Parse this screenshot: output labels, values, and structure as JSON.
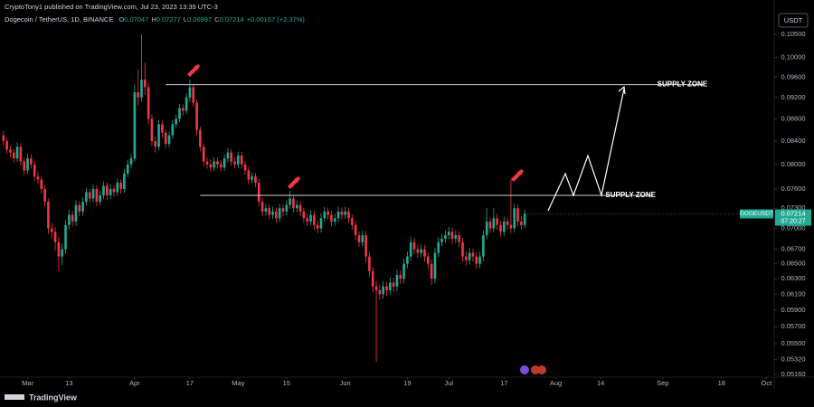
{
  "header": {
    "published": "CryptoTony1 published on TradingView.com, Jul 23, 2023 13:39 UTC-3",
    "symbol": "Dogecoin / TetherUS, 1D, BINANCE",
    "o_label": "O",
    "o": "0.07047",
    "h_label": "H",
    "h": "0.07277",
    "l_label": "L",
    "l": "0.06997",
    "c_label": "C",
    "c": "0.07214",
    "change": "+0.00167 (+2.37%)"
  },
  "currency": "USDT",
  "footer": "TradingView",
  "price_tag": {
    "symbol": "DOGEUSDT",
    "price": "0.07214",
    "countdown": "07:20:27"
  },
  "chart_data": {
    "type": "candlestick",
    "log_scale": true,
    "grid": false,
    "up_color": "#22ab94",
    "down_color": "#f23645",
    "ylim": [
      0.0512,
      0.1086
    ],
    "yticks": [
      {
        "value": 0.105,
        "label": "0.10500"
      },
      {
        "value": 0.1,
        "label": "0.10000"
      },
      {
        "value": 0.096,
        "label": "0.09600"
      },
      {
        "value": 0.092,
        "label": "0.09200"
      },
      {
        "value": 0.088,
        "label": "0.08800"
      },
      {
        "value": 0.084,
        "label": "0.08400"
      },
      {
        "value": 0.08,
        "label": "0.08000"
      },
      {
        "value": 0.076,
        "label": "0.07600"
      },
      {
        "value": 0.073,
        "label": "0.07300"
      },
      {
        "value": 0.07,
        "label": "0.07000"
      },
      {
        "value": 0.067,
        "label": "0.06700"
      },
      {
        "value": 0.065,
        "label": "0.06500"
      },
      {
        "value": 0.063,
        "label": "0.06300"
      },
      {
        "value": 0.061,
        "label": "0.06100"
      },
      {
        "value": 0.059,
        "label": "0.05900"
      },
      {
        "value": 0.057,
        "label": "0.05700"
      },
      {
        "value": 0.055,
        "label": "0.05500"
      },
      {
        "value": 0.0532,
        "label": "0.05320"
      },
      {
        "value": 0.0516,
        "label": "0.05160"
      }
    ],
    "xlim": [
      -8,
      216
    ],
    "xticks": [
      {
        "value": 0,
        "label": "Mar"
      },
      {
        "value": 12,
        "label": "13"
      },
      {
        "value": 31,
        "label": "Apr"
      },
      {
        "value": 47,
        "label": "17"
      },
      {
        "value": 61,
        "label": "May"
      },
      {
        "value": 75,
        "label": "15"
      },
      {
        "value": 92,
        "label": "Jun"
      },
      {
        "value": 110,
        "label": "19"
      },
      {
        "value": 122,
        "label": "Jul"
      },
      {
        "value": 138,
        "label": "17"
      },
      {
        "value": 153,
        "label": "Aug"
      },
      {
        "value": 166,
        "label": "14"
      },
      {
        "value": 184,
        "label": "Sep"
      },
      {
        "value": 201,
        "label": "18"
      },
      {
        "value": 214,
        "label": "Oct"
      }
    ],
    "zones": [
      {
        "label": "SUPPLY ZONE",
        "price": 0.0945,
        "from": 40,
        "to": 196
      },
      {
        "label": "SUPPLY ZONE",
        "price": 0.075,
        "from": 50,
        "to": 181
      }
    ],
    "candles": [
      [
        -7,
        0.085,
        0.0858,
        0.0832,
        0.084
      ],
      [
        -6,
        0.084,
        0.0846,
        0.0818,
        0.0825
      ],
      [
        -5,
        0.0825,
        0.0832,
        0.0812,
        0.082
      ],
      [
        -4,
        0.082,
        0.0826,
        0.0803,
        0.081
      ],
      [
        -3,
        0.081,
        0.0838,
        0.0804,
        0.083
      ],
      [
        -2,
        0.083,
        0.0836,
        0.0798,
        0.0805
      ],
      [
        -1,
        0.0805,
        0.0812,
        0.0782,
        0.079
      ],
      [
        0,
        0.079,
        0.0818,
        0.0784,
        0.081
      ],
      [
        1,
        0.081,
        0.0817,
        0.0793,
        0.08
      ],
      [
        2,
        0.08,
        0.0806,
        0.0772,
        0.078
      ],
      [
        3,
        0.078,
        0.0788,
        0.0768,
        0.0775
      ],
      [
        4,
        0.0775,
        0.0781,
        0.0752,
        0.076
      ],
      [
        5,
        0.076,
        0.0766,
        0.0733,
        0.074
      ],
      [
        6,
        0.074,
        0.0745,
        0.0692,
        0.07
      ],
      [
        7,
        0.07,
        0.0708,
        0.0686,
        0.0695
      ],
      [
        8,
        0.0695,
        0.0702,
        0.0668,
        0.068
      ],
      [
        9,
        0.068,
        0.0688,
        0.064,
        0.066
      ],
      [
        10,
        0.066,
        0.0678,
        0.0648,
        0.067
      ],
      [
        11,
        0.067,
        0.0712,
        0.0664,
        0.0705
      ],
      [
        12,
        0.0705,
        0.0728,
        0.0698,
        0.072
      ],
      [
        13,
        0.072,
        0.0726,
        0.0703,
        0.071
      ],
      [
        14,
        0.071,
        0.0742,
        0.0704,
        0.0735
      ],
      [
        15,
        0.0735,
        0.0741,
        0.0718,
        0.0725
      ],
      [
        16,
        0.0725,
        0.0747,
        0.0719,
        0.074
      ],
      [
        17,
        0.074,
        0.0762,
        0.0734,
        0.0755
      ],
      [
        18,
        0.0755,
        0.076,
        0.0738,
        0.0745
      ],
      [
        19,
        0.0745,
        0.0767,
        0.0739,
        0.076
      ],
      [
        20,
        0.076,
        0.0765,
        0.0733,
        0.074
      ],
      [
        21,
        0.074,
        0.0757,
        0.0734,
        0.075
      ],
      [
        22,
        0.075,
        0.0772,
        0.0744,
        0.0765
      ],
      [
        23,
        0.0765,
        0.077,
        0.0743,
        0.075
      ],
      [
        24,
        0.075,
        0.0767,
        0.0744,
        0.076
      ],
      [
        25,
        0.076,
        0.0766,
        0.0748,
        0.0755
      ],
      [
        26,
        0.0755,
        0.0777,
        0.0749,
        0.077
      ],
      [
        27,
        0.077,
        0.0775,
        0.0753,
        0.076
      ],
      [
        28,
        0.076,
        0.0792,
        0.0754,
        0.0785
      ],
      [
        29,
        0.0785,
        0.0808,
        0.0779,
        0.08
      ],
      [
        30,
        0.08,
        0.0818,
        0.0794,
        0.081
      ],
      [
        31,
        0.081,
        0.0945,
        0.0805,
        0.093
      ],
      [
        32,
        0.093,
        0.0975,
        0.0905,
        0.092
      ],
      [
        33,
        0.092,
        0.105,
        0.0912,
        0.0955
      ],
      [
        34,
        0.0955,
        0.099,
        0.0925,
        0.094
      ],
      [
        35,
        0.094,
        0.0948,
        0.087,
        0.088
      ],
      [
        36,
        0.088,
        0.0888,
        0.0832,
        0.084
      ],
      [
        37,
        0.084,
        0.0848,
        0.082,
        0.083
      ],
      [
        38,
        0.083,
        0.0878,
        0.0824,
        0.087
      ],
      [
        39,
        0.087,
        0.0876,
        0.0846,
        0.0855
      ],
      [
        40,
        0.0855,
        0.0861,
        0.0828,
        0.0835
      ],
      [
        41,
        0.0835,
        0.0857,
        0.0829,
        0.085
      ],
      [
        42,
        0.085,
        0.0877,
        0.0844,
        0.087
      ],
      [
        43,
        0.087,
        0.0888,
        0.0864,
        0.088
      ],
      [
        44,
        0.088,
        0.0908,
        0.0874,
        0.09
      ],
      [
        45,
        0.09,
        0.0907,
        0.0886,
        0.0895
      ],
      [
        46,
        0.0895,
        0.0928,
        0.0889,
        0.092
      ],
      [
        47,
        0.092,
        0.0955,
        0.0912,
        0.094
      ],
      [
        48,
        0.094,
        0.0946,
        0.0902,
        0.091
      ],
      [
        49,
        0.091,
        0.0916,
        0.085,
        0.086
      ],
      [
        50,
        0.086,
        0.0866,
        0.0822,
        0.083
      ],
      [
        51,
        0.083,
        0.0836,
        0.0797,
        0.0805
      ],
      [
        52,
        0.0805,
        0.0812,
        0.0793,
        0.08
      ],
      [
        53,
        0.08,
        0.0808,
        0.0788,
        0.0795
      ],
      [
        54,
        0.0795,
        0.0812,
        0.0789,
        0.0805
      ],
      [
        55,
        0.0805,
        0.0811,
        0.0793,
        0.08
      ],
      [
        56,
        0.08,
        0.0807,
        0.0788,
        0.0795
      ],
      [
        57,
        0.0795,
        0.0817,
        0.0789,
        0.081
      ],
      [
        58,
        0.081,
        0.0828,
        0.0804,
        0.082
      ],
      [
        59,
        0.082,
        0.0826,
        0.0798,
        0.0805
      ],
      [
        60,
        0.0805,
        0.0812,
        0.0793,
        0.08
      ],
      [
        61,
        0.08,
        0.0822,
        0.0794,
        0.0815
      ],
      [
        62,
        0.0815,
        0.0821,
        0.0793,
        0.08
      ],
      [
        63,
        0.08,
        0.0806,
        0.0783,
        0.079
      ],
      [
        64,
        0.079,
        0.0796,
        0.0768,
        0.0775
      ],
      [
        65,
        0.0775,
        0.0787,
        0.0769,
        0.078
      ],
      [
        66,
        0.078,
        0.0786,
        0.0763,
        0.077
      ],
      [
        67,
        0.077,
        0.0776,
        0.0733,
        0.074
      ],
      [
        68,
        0.074,
        0.0746,
        0.0718,
        0.0725
      ],
      [
        69,
        0.0725,
        0.0737,
        0.0719,
        0.073
      ],
      [
        70,
        0.073,
        0.0736,
        0.0713,
        0.072
      ],
      [
        71,
        0.072,
        0.0732,
        0.0714,
        0.0725
      ],
      [
        72,
        0.0725,
        0.0731,
        0.0708,
        0.0715
      ],
      [
        73,
        0.0715,
        0.0737,
        0.0709,
        0.073
      ],
      [
        74,
        0.073,
        0.0736,
        0.0718,
        0.0725
      ],
      [
        75,
        0.0725,
        0.0742,
        0.0719,
        0.0735
      ],
      [
        76,
        0.0735,
        0.0757,
        0.0729,
        0.0745
      ],
      [
        77,
        0.0745,
        0.075,
        0.0723,
        0.073
      ],
      [
        78,
        0.073,
        0.0742,
        0.0724,
        0.0735
      ],
      [
        79,
        0.0735,
        0.0741,
        0.0718,
        0.0725
      ],
      [
        80,
        0.0725,
        0.0731,
        0.0708,
        0.0715
      ],
      [
        81,
        0.0715,
        0.0722,
        0.0703,
        0.071
      ],
      [
        82,
        0.071,
        0.0727,
        0.0704,
        0.072
      ],
      [
        83,
        0.072,
        0.0726,
        0.0698,
        0.0705
      ],
      [
        84,
        0.0705,
        0.0712,
        0.0693,
        0.07
      ],
      [
        85,
        0.07,
        0.0722,
        0.0694,
        0.0715
      ],
      [
        86,
        0.0715,
        0.0732,
        0.0709,
        0.0725
      ],
      [
        87,
        0.0725,
        0.0731,
        0.0713,
        0.072
      ],
      [
        88,
        0.072,
        0.0726,
        0.0703,
        0.071
      ],
      [
        89,
        0.071,
        0.0722,
        0.0704,
        0.0715
      ],
      [
        90,
        0.0715,
        0.0732,
        0.0709,
        0.0725
      ],
      [
        91,
        0.0725,
        0.0731,
        0.0713,
        0.072
      ],
      [
        92,
        0.072,
        0.0732,
        0.0714,
        0.0725
      ],
      [
        93,
        0.0725,
        0.0731,
        0.0708,
        0.0715
      ],
      [
        94,
        0.0715,
        0.0721,
        0.0698,
        0.0705
      ],
      [
        95,
        0.0705,
        0.0711,
        0.0683,
        0.069
      ],
      [
        96,
        0.069,
        0.0696,
        0.0673,
        0.068
      ],
      [
        97,
        0.068,
        0.0697,
        0.0674,
        0.069
      ],
      [
        98,
        0.069,
        0.0696,
        0.0652,
        0.066
      ],
      [
        99,
        0.066,
        0.0666,
        0.0632,
        0.064
      ],
      [
        100,
        0.064,
        0.0646,
        0.0612,
        0.062
      ],
      [
        101,
        0.062,
        0.0627,
        0.053,
        0.0615
      ],
      [
        102,
        0.0615,
        0.0622,
        0.0603,
        0.061
      ],
      [
        103,
        0.061,
        0.0627,
        0.0604,
        0.062
      ],
      [
        104,
        0.062,
        0.0626,
        0.0608,
        0.0615
      ],
      [
        105,
        0.0615,
        0.0632,
        0.0609,
        0.0625
      ],
      [
        106,
        0.0625,
        0.0631,
        0.0613,
        0.062
      ],
      [
        107,
        0.062,
        0.0642,
        0.0614,
        0.0635
      ],
      [
        108,
        0.0635,
        0.0641,
        0.0623,
        0.063
      ],
      [
        109,
        0.063,
        0.0657,
        0.0624,
        0.065
      ],
      [
        110,
        0.065,
        0.0667,
        0.0644,
        0.066
      ],
      [
        111,
        0.066,
        0.0687,
        0.0654,
        0.068
      ],
      [
        112,
        0.068,
        0.0686,
        0.0663,
        0.067
      ],
      [
        113,
        0.067,
        0.0677,
        0.0658,
        0.0665
      ],
      [
        114,
        0.0665,
        0.0677,
        0.0659,
        0.067
      ],
      [
        115,
        0.067,
        0.0676,
        0.0653,
        0.066
      ],
      [
        116,
        0.066,
        0.0666,
        0.0643,
        0.065
      ],
      [
        117,
        0.065,
        0.0656,
        0.0622,
        0.063
      ],
      [
        118,
        0.063,
        0.0672,
        0.0624,
        0.0665
      ],
      [
        119,
        0.0665,
        0.0687,
        0.0659,
        0.068
      ],
      [
        120,
        0.068,
        0.0692,
        0.0674,
        0.0685
      ],
      [
        121,
        0.0685,
        0.0697,
        0.0679,
        0.069
      ],
      [
        122,
        0.069,
        0.0702,
        0.0684,
        0.0695
      ],
      [
        123,
        0.0695,
        0.0701,
        0.0678,
        0.0685
      ],
      [
        124,
        0.0685,
        0.0697,
        0.0679,
        0.069
      ],
      [
        125,
        0.069,
        0.0696,
        0.0673,
        0.068
      ],
      [
        126,
        0.068,
        0.0686,
        0.0653,
        0.066
      ],
      [
        127,
        0.066,
        0.0667,
        0.0648,
        0.0655
      ],
      [
        128,
        0.0655,
        0.0672,
        0.0649,
        0.0665
      ],
      [
        129,
        0.0665,
        0.0671,
        0.0653,
        0.066
      ],
      [
        130,
        0.066,
        0.0666,
        0.0643,
        0.065
      ],
      [
        131,
        0.065,
        0.0667,
        0.0644,
        0.066
      ],
      [
        132,
        0.066,
        0.0697,
        0.0654,
        0.069
      ],
      [
        133,
        0.069,
        0.073,
        0.0684,
        0.071
      ],
      [
        134,
        0.071,
        0.0716,
        0.0693,
        0.07
      ],
      [
        135,
        0.07,
        0.073,
        0.0694,
        0.0715
      ],
      [
        136,
        0.0715,
        0.0721,
        0.0698,
        0.0705
      ],
      [
        137,
        0.0705,
        0.0711,
        0.0688,
        0.0695
      ],
      [
        138,
        0.0695,
        0.0717,
        0.0689,
        0.071
      ],
      [
        139,
        0.071,
        0.0716,
        0.0698,
        0.0705
      ],
      [
        140,
        0.0705,
        0.0775,
        0.0693,
        0.07
      ],
      [
        141,
        0.07,
        0.0737,
        0.0694,
        0.073
      ],
      [
        142,
        0.073,
        0.0736,
        0.0703,
        0.071
      ],
      [
        143,
        0.071,
        0.0718,
        0.0698,
        0.07047
      ],
      [
        144,
        0.07047,
        0.07277,
        0.06997,
        0.07214
      ]
    ]
  }
}
